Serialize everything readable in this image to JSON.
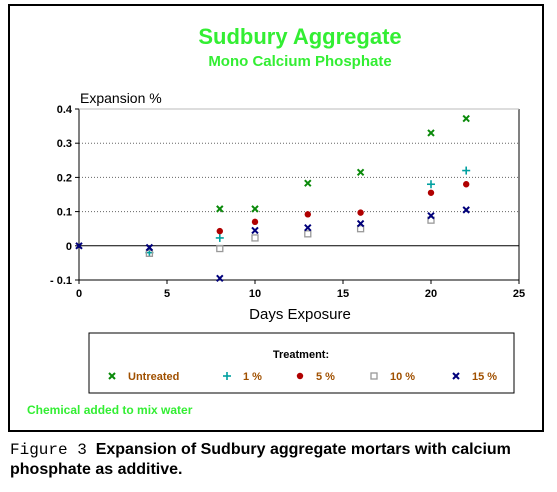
{
  "chart_data": {
    "type": "scatter",
    "title": "Sudbury Aggregate",
    "subtitle": "Mono Calcium Phosphate",
    "xlabel": "Days Exposure",
    "ylabel": "Expansion %",
    "xlim": [
      0,
      25
    ],
    "ylim": [
      -0.1,
      0.4
    ],
    "xticks": [
      0,
      5,
      10,
      15,
      20,
      25
    ],
    "xtick_labels": [
      "0",
      "5",
      "10",
      "15",
      "20",
      "25"
    ],
    "yticks": [
      -0.1,
      0,
      0.1,
      0.2,
      0.3,
      0.4
    ],
    "ytick_labels": [
      "- 0.1",
      "0",
      "0.1",
      "0.2",
      "0.3",
      "0.4"
    ],
    "grid": "horizontal dotted",
    "legend_title": "Treatment:",
    "legend_position": "below plot",
    "note": "Chemical added to mix water",
    "series": [
      {
        "name": "Untreated",
        "marker": "x",
        "color": "#0a8a0a",
        "x": [
          8,
          10,
          13,
          16,
          20,
          22
        ],
        "y": [
          0.108,
          0.108,
          0.183,
          0.215,
          0.33,
          0.372
        ]
      },
      {
        "name": "1 %",
        "marker": "plus",
        "color": "#00a0a0",
        "x": [
          4,
          8,
          20,
          22
        ],
        "y": [
          -0.02,
          0.023,
          0.18,
          0.22
        ]
      },
      {
        "name": "5 %",
        "marker": "dot",
        "color": "#b00000",
        "x": [
          8,
          10,
          13,
          16,
          20,
          22
        ],
        "y": [
          0.043,
          0.07,
          0.092,
          0.097,
          0.155,
          0.18
        ]
      },
      {
        "name": "10 %",
        "marker": "square",
        "color": "#999999",
        "x": [
          4,
          8,
          10,
          13,
          16,
          20
        ],
        "y": [
          -0.022,
          -0.008,
          0.023,
          0.035,
          0.05,
          0.075
        ]
      },
      {
        "name": "15 %",
        "marker": "x",
        "color": "#00007a",
        "x": [
          0,
          4,
          8,
          10,
          13,
          16,
          20,
          22
        ],
        "y": [
          0,
          -0.005,
          -0.095,
          0.045,
          0.053,
          0.065,
          0.088,
          0.105
        ]
      }
    ]
  },
  "caption": {
    "label": "Figure 3",
    "text": "Expansion of Sudbury aggregate mortars with calcium phosphate as additive."
  },
  "colors": {
    "title": "#33ee33",
    "note": "#33ee33",
    "legend_label": "#a05000",
    "axis": "#000000",
    "grid": "#666666"
  }
}
